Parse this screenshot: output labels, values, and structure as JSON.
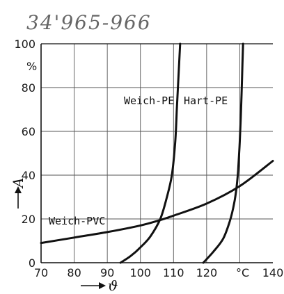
{
  "annotation": "34'965-966",
  "chart_data": {
    "type": "line",
    "xlabel": "ϑ",
    "ylabel": "A",
    "x_unit": "°C",
    "y_unit": "%",
    "xlim": [
      70,
      140
    ],
    "ylim": [
      0,
      100
    ],
    "x_ticks": [
      70,
      80,
      90,
      100,
      110,
      120,
      140
    ],
    "y_ticks": [
      0,
      20,
      40,
      60,
      80,
      100
    ],
    "grid": true,
    "series": [
      {
        "name": "Weich-PVC",
        "x": [
          70,
          80,
          90,
          100,
          106,
          110,
          120,
          130,
          140
        ],
        "y": [
          9,
          11.5,
          14,
          17,
          19.5,
          21.5,
          27,
          35,
          46.5
        ]
      },
      {
        "name": "Weich-PE",
        "x": [
          94,
          97,
          100,
          103,
          106,
          108,
          109.5,
          110.5,
          111,
          111.5,
          112
        ],
        "y": [
          0,
          3,
          7,
          12,
          20,
          30,
          40,
          55,
          70,
          85,
          100
        ]
      },
      {
        "name": "Hart-PE",
        "x": [
          119,
          122,
          125,
          127,
          128.3,
          129,
          129.5,
          130,
          130.4,
          130.7,
          131
        ],
        "y": [
          0,
          5,
          11,
          19,
          27,
          34,
          42,
          55,
          70,
          85,
          100
        ]
      }
    ]
  }
}
